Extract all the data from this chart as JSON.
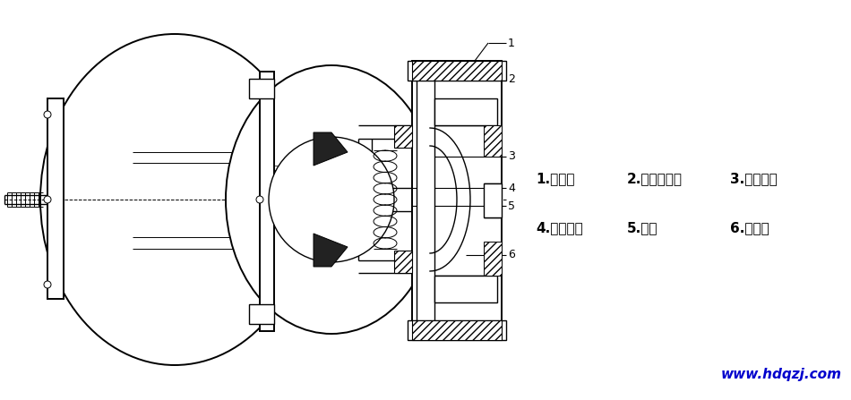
{
  "bg_color": "#ffffff",
  "line_color": "#000000",
  "label_color": "#0000cd",
  "label_text": "www.hdqzj.com",
  "legend_items": [
    {
      "num": "1.",
      "text": "制动环"
    },
    {
      "num": "2.",
      "text": "风扇制动轮"
    },
    {
      "num": "3.",
      "text": "制动弹簧"
    },
    {
      "num": "4.",
      "text": "调整螺母"
    },
    {
      "num": "5.",
      "text": "螺钉"
    },
    {
      "num": "6.",
      "text": "后端盖"
    }
  ],
  "figsize": [
    9.5,
    4.47
  ],
  "dpi": 100
}
